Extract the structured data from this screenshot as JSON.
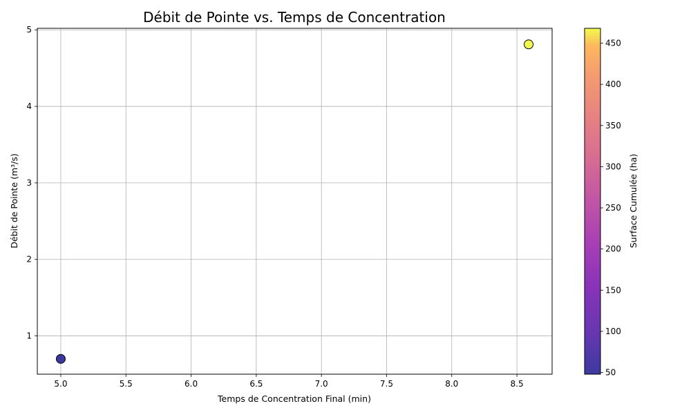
{
  "chart_data": {
    "type": "scatter",
    "title": "Débit de Pointe vs. Temps de Concentration",
    "xlabel": "Temps de Concentration Final (min)",
    "ylabel": "Débit de Pointe (m³/s)",
    "xlim": [
      4.82,
      8.77
    ],
    "ylim": [
      0.5,
      5.02
    ],
    "x_ticks": [
      "5.0",
      "5.5",
      "6.0",
      "6.5",
      "7.0",
      "7.5",
      "8.0",
      "8.5"
    ],
    "y_ticks": [
      "1",
      "2",
      "3",
      "4",
      "5"
    ],
    "grid": true,
    "points": [
      {
        "x": 5.0,
        "y": 0.7,
        "surface": 48
      },
      {
        "x": 8.59,
        "y": 4.81,
        "surface": 468
      }
    ],
    "colorbar": {
      "label": "Surface Cumulée (ha)",
      "range": [
        48,
        468
      ],
      "ticks": [
        "50",
        "100",
        "150",
        "200",
        "250",
        "300",
        "350",
        "400",
        "450"
      ],
      "colormap": "plasma"
    }
  }
}
